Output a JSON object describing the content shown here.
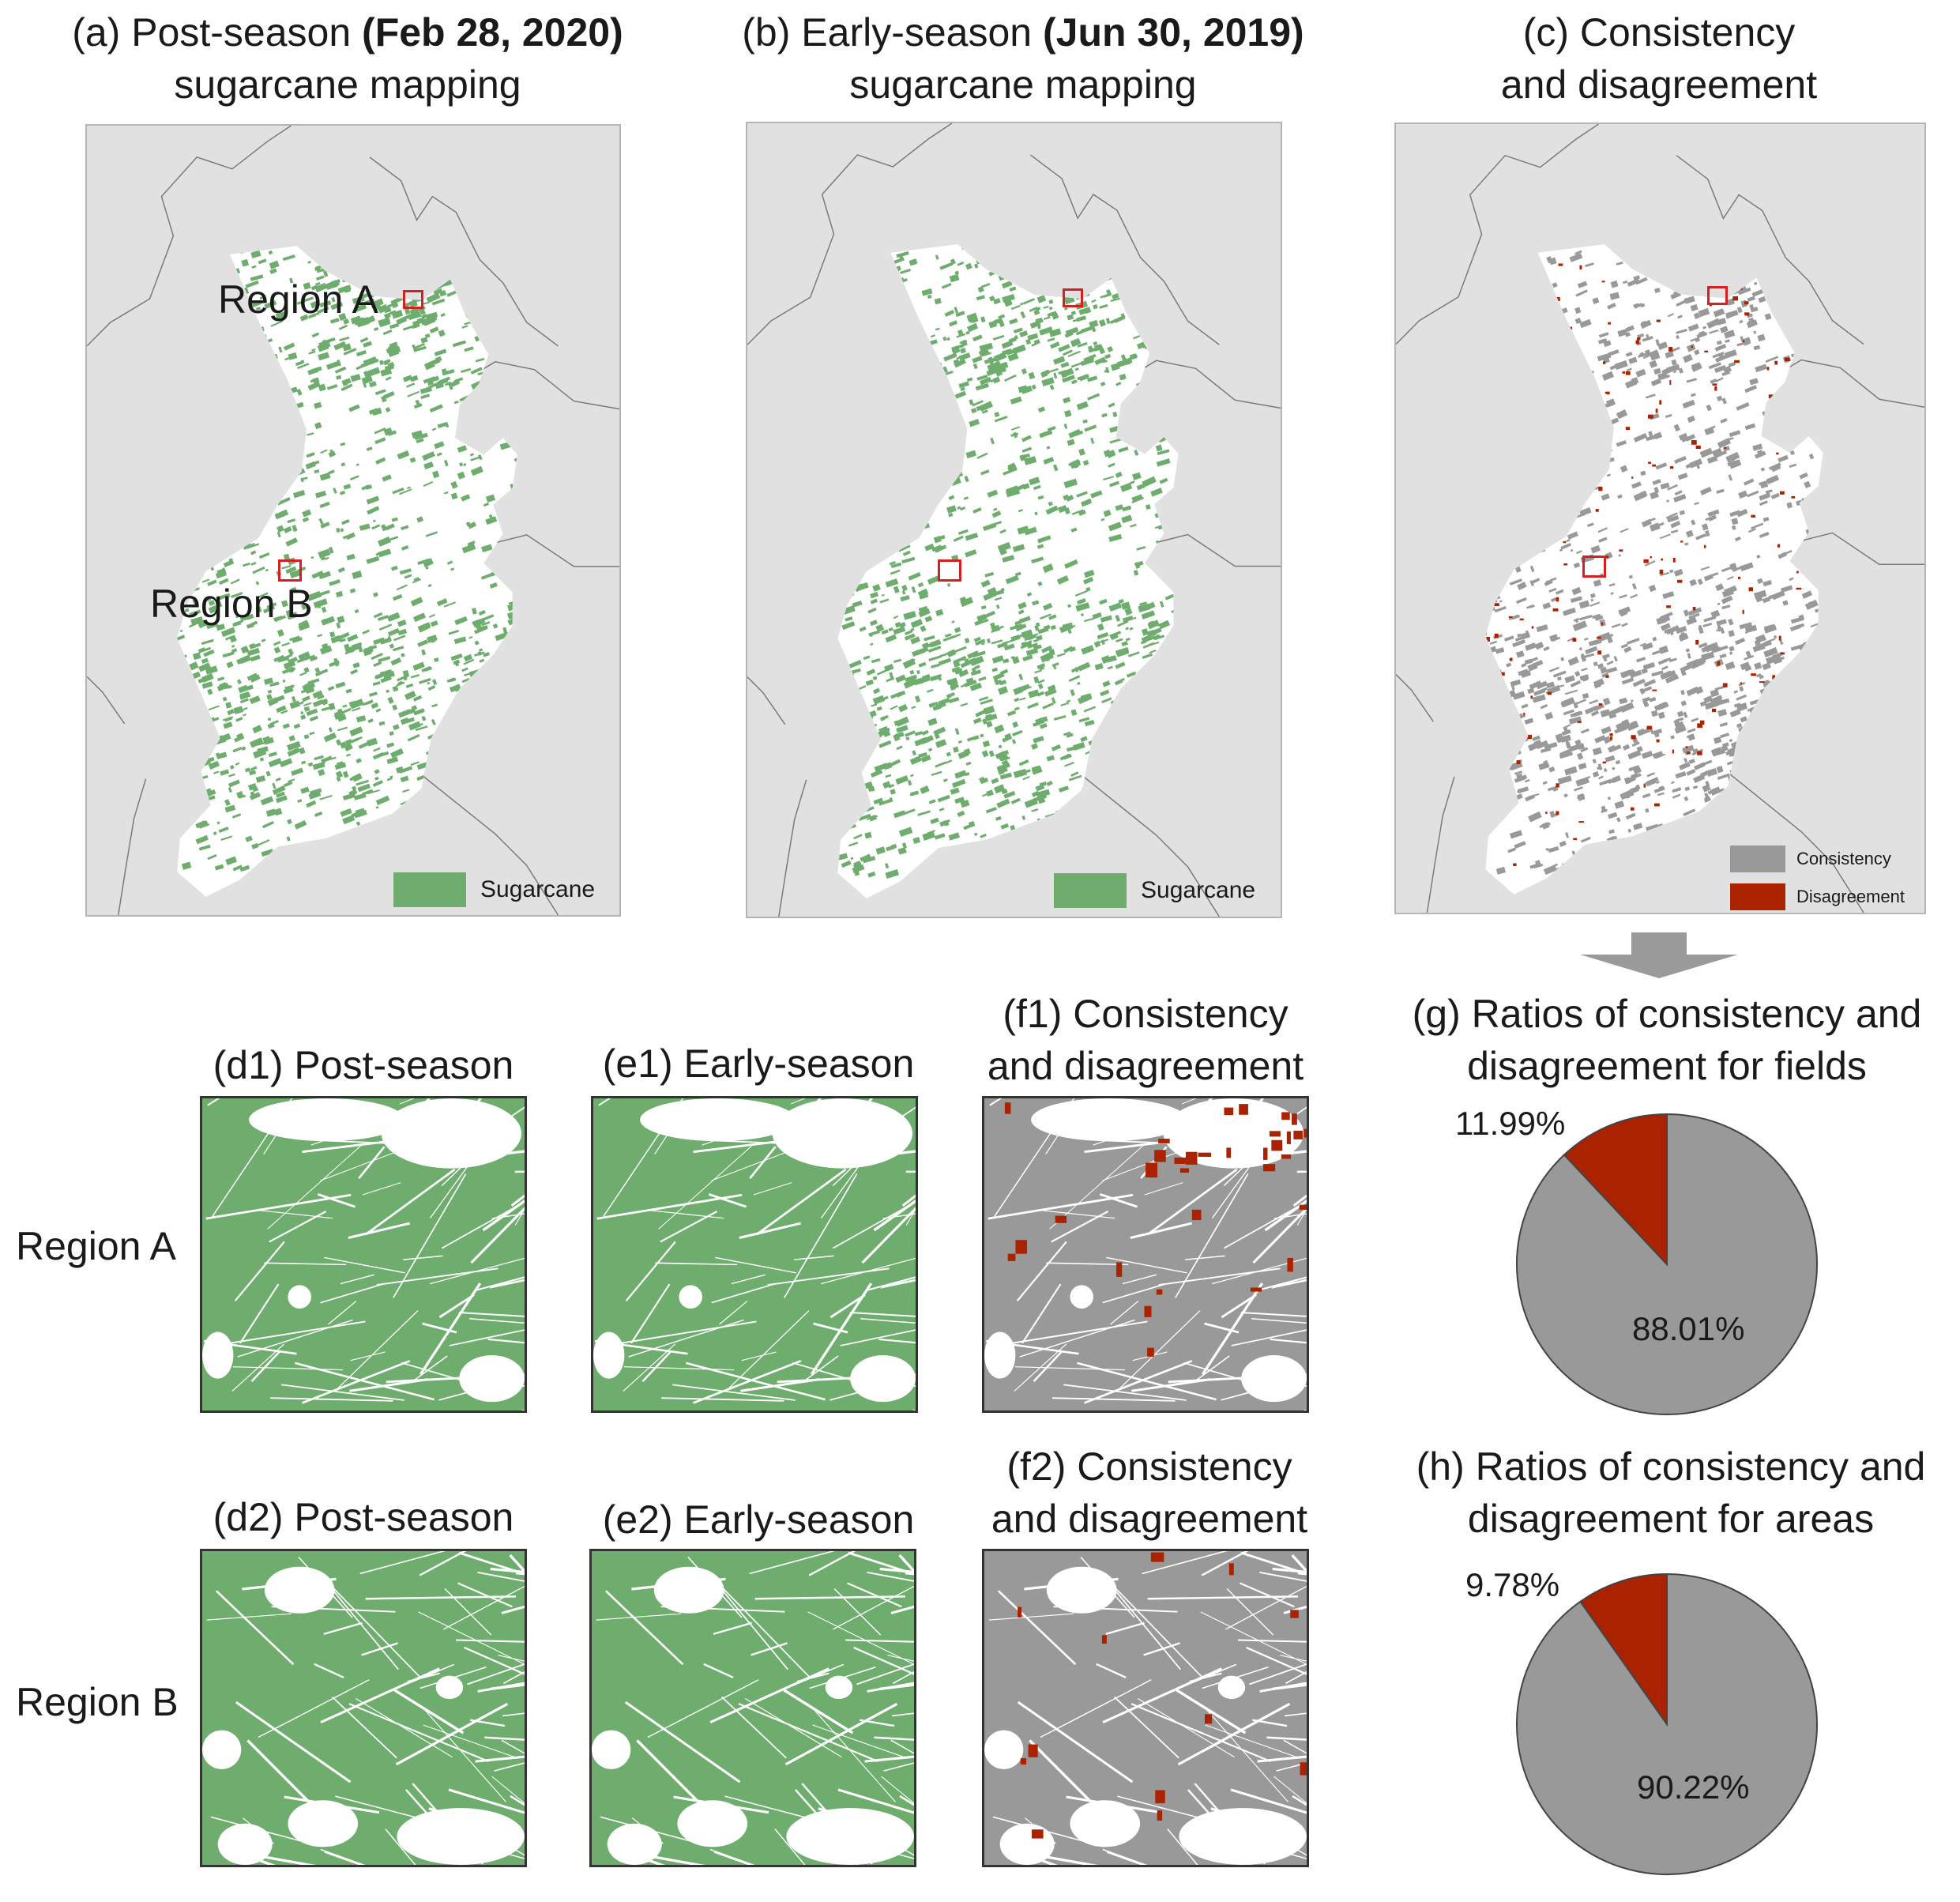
{
  "colors": {
    "sugarcane": "#6ead6e",
    "consistency": "#999999",
    "disagreement": "#aa2200",
    "background": "#e1e1e1",
    "region_outline": "#d42020"
  },
  "panel_a": {
    "title_prefix": "(a) Post-season ",
    "title_bold": "(Feb 28, 2020)",
    "title_line2": "sugarcane mapping",
    "legend_label": "Sugarcane",
    "region_a_label": "Region A",
    "region_b_label": "Region B"
  },
  "panel_b": {
    "title_prefix": "(b) Early-season ",
    "title_bold": "(Jun 30, 2019)",
    "title_line2": "sugarcane mapping",
    "legend_label": "Sugarcane"
  },
  "panel_c": {
    "title_line1": "(c) Consistency",
    "title_line2": "and disagreement",
    "legend_consistency": "Consistency",
    "legend_disagreement": "Disagreement"
  },
  "d1": {
    "title": "(d1) Post-season"
  },
  "e1": {
    "title": "(e1) Early-season"
  },
  "f1": {
    "title_line1": "(f1) Consistency",
    "title_line2": "and disagreement"
  },
  "d2": {
    "title": "(d2) Post-season"
  },
  "e2": {
    "title": "(e2) Early-season"
  },
  "f2": {
    "title_line1": "(f2) Consistency",
    "title_line2": "and disagreement"
  },
  "row_labels": {
    "region_a": "Region A",
    "region_b": "Region B"
  },
  "chart_data": [
    {
      "type": "pie",
      "title": "(g) Ratios of consistency and disagreement for fields",
      "title_line1": "(g) Ratios of consistency and",
      "title_line2": "disagreement for fields",
      "slices": [
        {
          "label": "Consistency",
          "value": 88.01,
          "display": "88.01%"
        },
        {
          "label": "Disagreement",
          "value": 11.99,
          "display": "11.99%"
        }
      ]
    },
    {
      "type": "pie",
      "title": "(h) Ratios of consistency and disagreement for areas",
      "title_line1": "(h) Ratios of consistency and",
      "title_line2": "disagreement for areas",
      "slices": [
        {
          "label": "Consistency",
          "value": 90.22,
          "display": "90.22%"
        },
        {
          "label": "Disagreement",
          "value": 9.78,
          "display": "9.78%"
        }
      ]
    }
  ]
}
